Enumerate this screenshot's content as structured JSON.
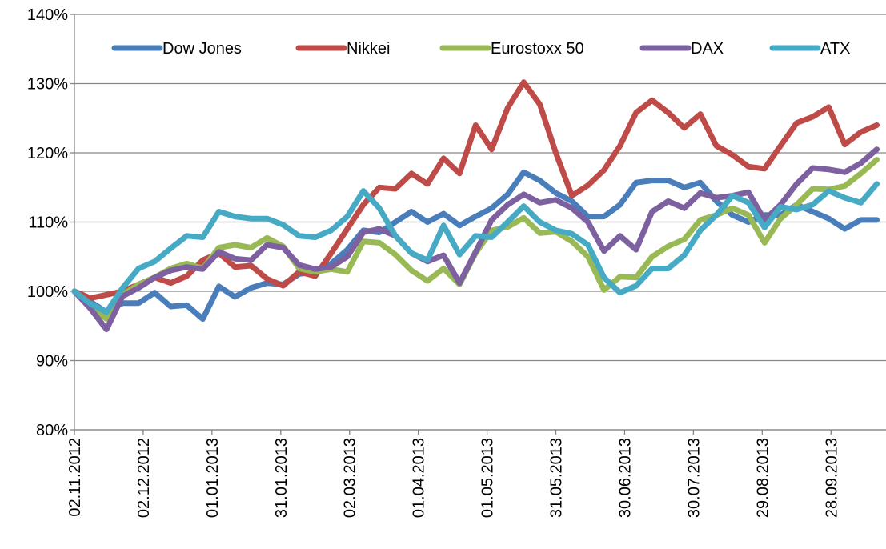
{
  "chart_data": {
    "type": "line",
    "x": [
      "2012-11-02",
      "2012-11-09",
      "2012-11-16",
      "2012-11-23",
      "2012-11-30",
      "2012-12-07",
      "2012-12-14",
      "2012-12-21",
      "2012-12-28",
      "2013-01-04",
      "2013-01-11",
      "2013-01-18",
      "2013-01-25",
      "2013-02-01",
      "2013-02-08",
      "2013-02-15",
      "2013-02-22",
      "2013-03-01",
      "2013-03-08",
      "2013-03-15",
      "2013-03-22",
      "2013-03-29",
      "2013-04-05",
      "2013-04-12",
      "2013-04-19",
      "2013-04-26",
      "2013-05-03",
      "2013-05-10",
      "2013-05-17",
      "2013-05-24",
      "2013-05-31",
      "2013-06-07",
      "2013-06-14",
      "2013-06-21",
      "2013-06-28",
      "2013-07-05",
      "2013-07-12",
      "2013-07-19",
      "2013-07-26",
      "2013-08-02",
      "2013-08-09",
      "2013-08-16",
      "2013-08-23",
      "2013-08-30",
      "2013-09-06",
      "2013-09-13",
      "2013-09-20",
      "2013-09-27",
      "2013-10-04",
      "2013-10-11",
      "2013-10-18"
    ],
    "xlim": [
      "2012-11-02",
      "2013-10-22"
    ],
    "xticks": [
      {
        "value": "2012-11-02",
        "label": "02.11.2012"
      },
      {
        "value": "2012-12-02",
        "label": "02.12.2012"
      },
      {
        "value": "2013-01-01",
        "label": "01.01.2013"
      },
      {
        "value": "2013-01-31",
        "label": "31.01.2013"
      },
      {
        "value": "2013-03-02",
        "label": "02.03.2013"
      },
      {
        "value": "2013-04-01",
        "label": "01.04.2013"
      },
      {
        "value": "2013-05-01",
        "label": "01.05.2013"
      },
      {
        "value": "2013-05-31",
        "label": "31.05.2013"
      },
      {
        "value": "2013-06-30",
        "label": "30.06.2013"
      },
      {
        "value": "2013-07-30",
        "label": "30.07.2013"
      },
      {
        "value": "2013-08-29",
        "label": "29.08.2013"
      },
      {
        "value": "2013-09-28",
        "label": "28.09.2013"
      }
    ],
    "ylim": [
      80,
      140
    ],
    "yticks": [
      {
        "value": 80,
        "label": "80%"
      },
      {
        "value": 90,
        "label": "90%"
      },
      {
        "value": 100,
        "label": "100%"
      },
      {
        "value": 110,
        "label": "110%"
      },
      {
        "value": 120,
        "label": "120%"
      },
      {
        "value": 130,
        "label": "130%"
      },
      {
        "value": 140,
        "label": "140%"
      }
    ],
    "grid": true,
    "legend": "top",
    "series": [
      {
        "name": "Dow Jones",
        "color": "#4a7ebb",
        "values": [
          100,
          98.5,
          97,
          98.3,
          98.3,
          99.8,
          97.8,
          98,
          96,
          100.7,
          99.2,
          100.5,
          101.2,
          101,
          102.5,
          102.8,
          104,
          106,
          108.8,
          108.5,
          110,
          111.5,
          110,
          111.2,
          109.5,
          110.8,
          112,
          114,
          117.2,
          116,
          114.2,
          113,
          110.8,
          110.8,
          112.5,
          115.7,
          116,
          116,
          115,
          115.7,
          113,
          111,
          110,
          111,
          111,
          112.5,
          111.5,
          110.5,
          109,
          110.3,
          110.3
        ]
      },
      {
        "name": "Nikkei",
        "color": "#be4b48",
        "values": [
          100,
          99,
          99.5,
          100,
          101,
          102,
          101.2,
          102.2,
          104.5,
          105.5,
          103.5,
          103.7,
          101.8,
          100.8,
          102.8,
          102.2,
          105.5,
          109,
          112.5,
          115,
          114.8,
          117,
          115.5,
          119.2,
          117,
          124,
          120.5,
          126.5,
          130.2,
          127,
          120,
          113.8,
          115.3,
          117.5,
          121,
          125.8,
          127.6,
          125.8,
          123.6,
          125.6,
          121,
          119.7,
          118,
          117.7,
          121,
          124.3,
          125.2,
          126.6,
          121.2,
          123,
          124
        ]
      },
      {
        "name": "Eurostoxx 50",
        "color": "#98b954",
        "values": [
          100,
          98,
          96,
          99.5,
          101,
          102,
          103.3,
          104,
          103.3,
          106.3,
          106.7,
          106.3,
          107.7,
          106.5,
          103.3,
          102.8,
          103.2,
          102.8,
          107.2,
          107,
          105.3,
          103,
          101.5,
          103.3,
          101,
          105.5,
          108.8,
          109.3,
          110.6,
          108.4,
          108.6,
          107.2,
          105,
          100.2,
          102.1,
          102,
          105,
          106.5,
          107.5,
          110.3,
          111,
          112,
          111,
          107,
          110.5,
          112.5,
          114.8,
          114.7,
          115.2,
          117,
          119
        ]
      },
      {
        "name": "DAX",
        "color": "#7d60a0",
        "values": [
          100,
          97.5,
          94.5,
          99.3,
          100.5,
          102,
          103,
          103.5,
          103.2,
          105.7,
          104.7,
          104.5,
          106.7,
          106.3,
          103.8,
          103.2,
          103.5,
          105,
          108.5,
          109,
          108,
          105.5,
          104.3,
          105.2,
          101.2,
          105.7,
          110.3,
          112.5,
          114,
          112.8,
          113.2,
          112,
          110,
          105.8,
          108,
          106,
          111.5,
          113,
          112,
          114.2,
          113.5,
          113.8,
          114.3,
          110.3,
          112.5,
          115.5,
          117.8,
          117.6,
          117.2,
          118.5,
          120.5
        ]
      },
      {
        "name": "ATX",
        "color": "#46aac5",
        "values": [
          100,
          98.2,
          97,
          100.5,
          103.3,
          104.3,
          106.2,
          108,
          107.8,
          111.5,
          110.8,
          110.5,
          110.5,
          109.6,
          108,
          107.8,
          108.8,
          110.8,
          114.5,
          112,
          108,
          105.5,
          104.5,
          109.5,
          105.3,
          108,
          107.8,
          110,
          112.3,
          110,
          108.8,
          108.3,
          106.7,
          102,
          99.8,
          100.8,
          103.3,
          103.3,
          105.2,
          108.8,
          111,
          113.8,
          112.8,
          109.2,
          112.2,
          111.8,
          112.5,
          114.5,
          113.5,
          112.8,
          115.5
        ]
      }
    ]
  }
}
